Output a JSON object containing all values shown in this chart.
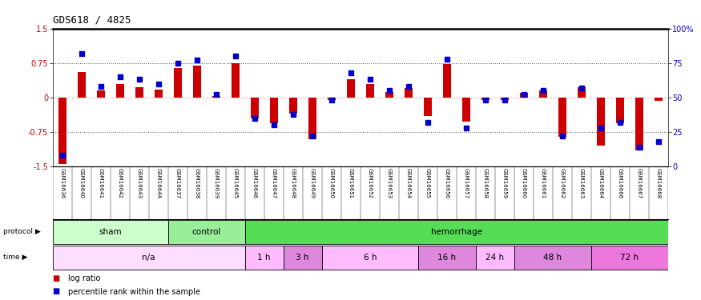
{
  "title": "GDS618 / 4825",
  "samples": [
    "GSM16636",
    "GSM16640",
    "GSM16641",
    "GSM16642",
    "GSM16643",
    "GSM16644",
    "GSM16637",
    "GSM16638",
    "GSM16639",
    "GSM16645",
    "GSM16646",
    "GSM16647",
    "GSM16648",
    "GSM16649",
    "GSM16650",
    "GSM16651",
    "GSM16652",
    "GSM16653",
    "GSM16654",
    "GSM16655",
    "GSM16656",
    "GSM16657",
    "GSM16658",
    "GSM16659",
    "GSM16660",
    "GSM16661",
    "GSM16662",
    "GSM16663",
    "GSM16664",
    "GSM16666",
    "GSM16667",
    "GSM16668"
  ],
  "log_ratio": [
    -1.45,
    0.55,
    0.15,
    0.3,
    0.22,
    0.18,
    0.65,
    0.7,
    0.03,
    0.75,
    -0.45,
    -0.55,
    -0.35,
    -0.9,
    -0.05,
    0.4,
    0.3,
    0.12,
    0.2,
    -0.4,
    0.72,
    -0.52,
    -0.05,
    -0.05,
    0.1,
    0.15,
    -0.85,
    0.22,
    -1.05,
    -0.55,
    -1.15,
    -0.08
  ],
  "percentile_rank": [
    8,
    82,
    58,
    65,
    63,
    60,
    75,
    77,
    52,
    80,
    35,
    30,
    38,
    22,
    48,
    68,
    63,
    55,
    58,
    32,
    78,
    28,
    48,
    48,
    52,
    55,
    22,
    57,
    28,
    32,
    14,
    18
  ],
  "protocol_groups": [
    {
      "label": "sham",
      "start": 0,
      "end": 5,
      "color": "#ccffcc"
    },
    {
      "label": "control",
      "start": 6,
      "end": 9,
      "color": "#99ee99"
    },
    {
      "label": "hemorrhage",
      "start": 10,
      "end": 31,
      "color": "#55dd55"
    }
  ],
  "time_groups": [
    {
      "label": "n/a",
      "start": 0,
      "end": 9,
      "color": "#ffddff"
    },
    {
      "label": "1 h",
      "start": 10,
      "end": 11,
      "color": "#ffbbff"
    },
    {
      "label": "3 h",
      "start": 12,
      "end": 13,
      "color": "#dd88dd"
    },
    {
      "label": "6 h",
      "start": 14,
      "end": 18,
      "color": "#ffbbff"
    },
    {
      "label": "16 h",
      "start": 19,
      "end": 21,
      "color": "#dd88dd"
    },
    {
      "label": "24 h",
      "start": 22,
      "end": 23,
      "color": "#ffbbff"
    },
    {
      "label": "48 h",
      "start": 24,
      "end": 27,
      "color": "#dd88dd"
    },
    {
      "label": "72 h",
      "start": 28,
      "end": 31,
      "color": "#ee77dd"
    }
  ],
  "ylim": [
    -1.5,
    1.5
  ],
  "yticks_left": [
    -1.5,
    -0.75,
    0.0,
    0.75,
    1.5
  ],
  "yticks_left_labels": [
    "-1.5",
    "-0.75",
    "0",
    "0.75",
    "1.5"
  ],
  "yticks_right": [
    0,
    25,
    50,
    75,
    100
  ],
  "yticks_right_labels": [
    "0",
    "25",
    "50",
    "75",
    "100%"
  ],
  "bar_color": "#cc0000",
  "dot_color": "#0000cc",
  "hline_zero_color": "#ff8888",
  "hline_ref_color": "#555555",
  "label_bg_color": "#cccccc",
  "bg_color": "#ffffff"
}
